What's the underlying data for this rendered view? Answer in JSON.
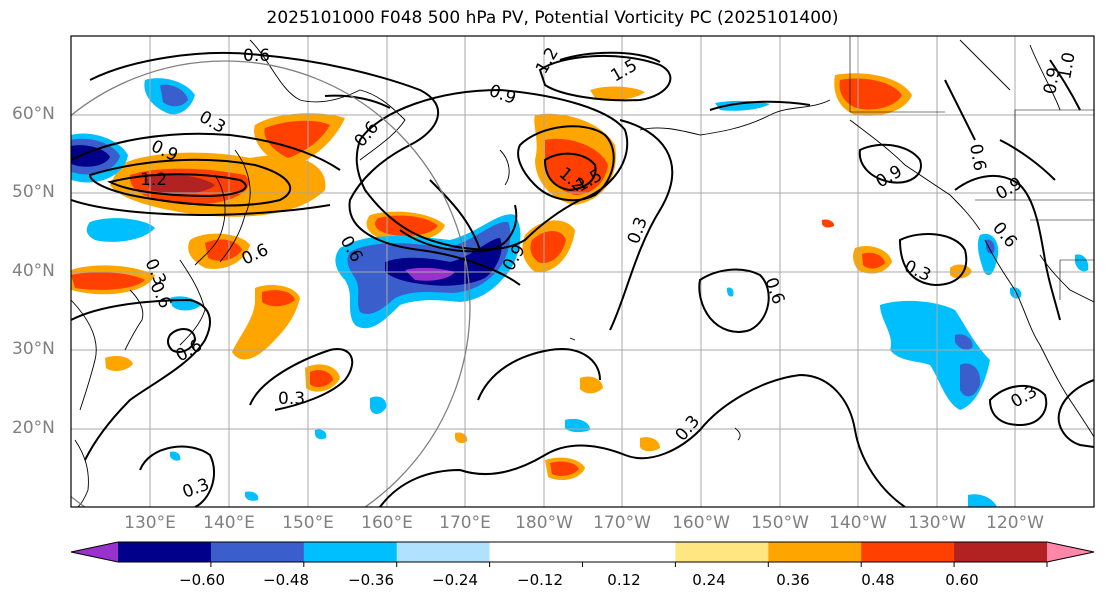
{
  "title": "2025101000 F048 500 hPa PV, Potential Vorticity PC (2025101400)",
  "lat_labels": [
    "60°N",
    "50°N",
    "40°N",
    "30°N",
    "20°N"
  ],
  "lon_labels": [
    "130°E",
    "140°E",
    "150°E",
    "160°E",
    "170°E",
    "180°W",
    "170°W",
    "160°W",
    "150°W",
    "140°W",
    "130°W",
    "120°W"
  ],
  "contour_labels": [
    "0.6",
    "0.3",
    "0.9",
    "1.2",
    "1.2",
    "1.5",
    "0.9",
    "0.6",
    "1.2",
    "1.5",
    "0.6",
    "0.9",
    "0.3",
    "0.6",
    "0.3",
    "0.6",
    "0.9",
    "0.6",
    "0.9",
    "0.9",
    "0.6",
    "1.0",
    "0.3",
    "0.6",
    "0.3",
    "0.3",
    "0.6",
    "0.3",
    "0.3"
  ],
  "colorbar": {
    "colors": [
      "#9932cc",
      "#00008b",
      "#3a5fcd",
      "#00bfff",
      "#b0e2ff",
      "#ffffff",
      "#ffffff",
      "#ffe680",
      "#ffa500",
      "#ff4000",
      "#b22222",
      "#ff88aa"
    ],
    "ticks": [
      "−0.60",
      "−0.48",
      "−0.36",
      "−0.24",
      "−0.12",
      "0.12",
      "0.24",
      "0.36",
      "0.48",
      "0.60"
    ]
  }
}
